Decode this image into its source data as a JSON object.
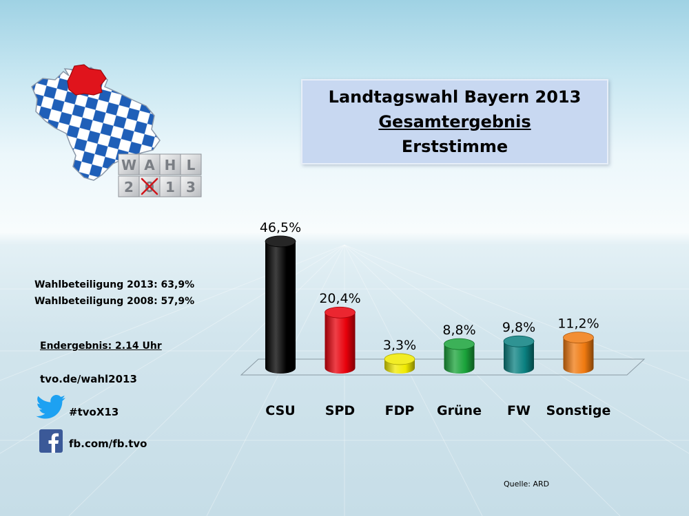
{
  "title": {
    "line1": "Landtagswahl Bayern 2013",
    "line2": "Gesamtergebnis",
    "line3": "Erststimme"
  },
  "logo": {
    "cubes_top": [
      "W",
      "A",
      "H",
      "L"
    ],
    "cubes_bottom": [
      "2",
      "0",
      "1",
      "3"
    ]
  },
  "sidebar": {
    "turnout_2013": "Wahlbeteiligung 2013: 63,9%",
    "turnout_2008": "Wahlbeteiligung 2008: 57,9%",
    "endresult": "Endergebnis: 2.14 Uhr",
    "url": "tvo.de/wahl2013",
    "hashtag": "#tvoX13",
    "facebook": "fb.com/fb.tvo"
  },
  "source": "Quelle: ARD",
  "colors": {
    "CSU": "#000000",
    "SPD": "#e8000b",
    "FDP": "#f0ea00",
    "Grüne": "#1aa33a",
    "FW": "#0a8080",
    "Sonstige": "#f07a10",
    "title_box": "#c8d8f1",
    "twitter": "#1da1f2",
    "facebook": "#3b5998"
  },
  "chart_data": {
    "type": "bar",
    "style": "3d-cylinder",
    "categories": [
      "CSU",
      "SPD",
      "FDP",
      "Grüne",
      "FW",
      "Sonstige"
    ],
    "values": [
      46.5,
      20.4,
      3.3,
      8.8,
      9.8,
      11.2
    ],
    "value_labels": [
      "46,5%",
      "20,4%",
      "3,3%",
      "8,8%",
      "9,8%",
      "11,2%"
    ],
    "colors": [
      "#000000",
      "#e8000b",
      "#f0ea00",
      "#1aa33a",
      "#0a8080",
      "#f07a10"
    ],
    "ylim": [
      0,
      50
    ],
    "grid": false,
    "legend": "none"
  }
}
